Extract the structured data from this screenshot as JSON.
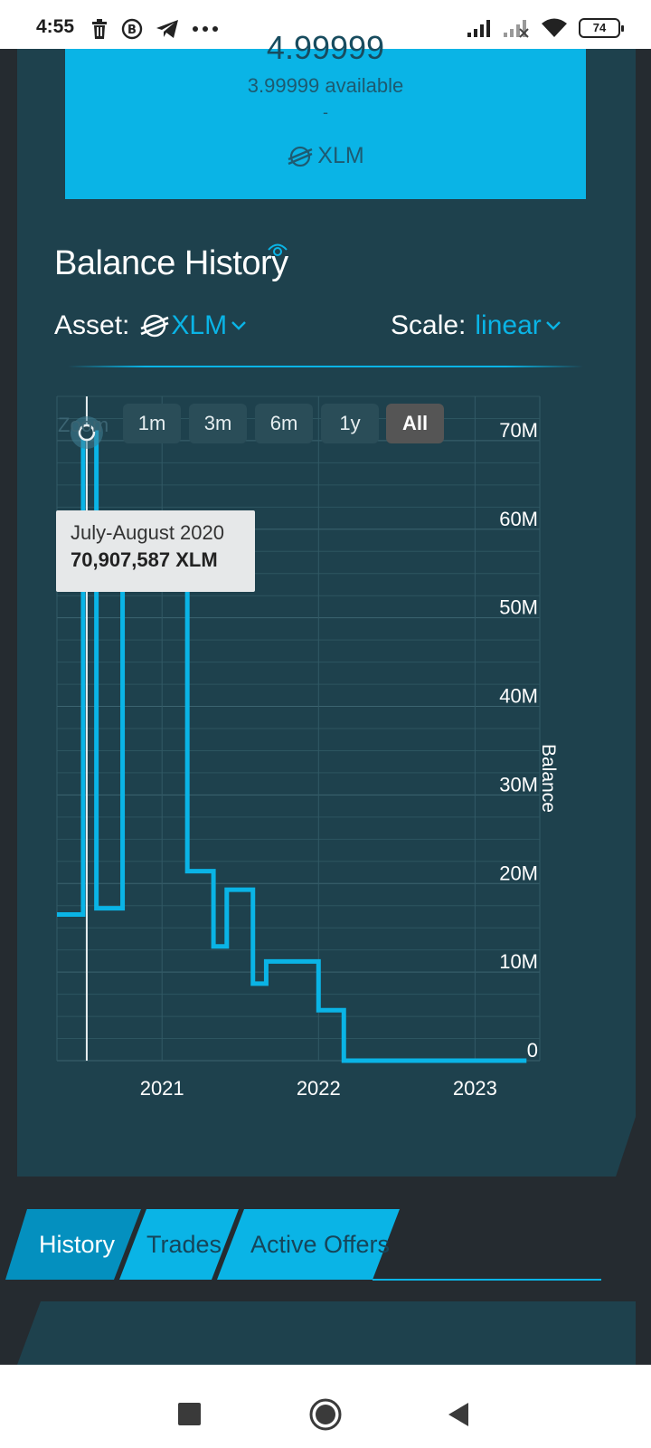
{
  "status_bar": {
    "time": "4:55",
    "battery": "74",
    "icons": [
      "trash-icon",
      "b-badge-icon",
      "telegram-icon",
      "more-dots-icon",
      "signal-icon",
      "signal-x-icon",
      "wifi-icon",
      "battery-icon"
    ]
  },
  "asset_card": {
    "balance": "4.99999",
    "available": "3.99999 available",
    "separator": "-",
    "code": "XLM",
    "icon": "stellar-icon"
  },
  "balance_history": {
    "title": "Balance History",
    "asset_label": "Asset:",
    "asset_value": "XLM",
    "scale_label": "Scale:",
    "scale_value": "linear"
  },
  "chart": {
    "zoom_label": "Zoom",
    "zoom_buttons": [
      {
        "label": "1m",
        "active": false
      },
      {
        "label": "3m",
        "active": false
      },
      {
        "label": "6m",
        "active": false
      },
      {
        "label": "1y",
        "active": false
      },
      {
        "label": "All",
        "active": true
      }
    ],
    "tooltip": {
      "date": "July-August 2020",
      "value": "70,907,587 XLM"
    }
  },
  "chart_data": {
    "type": "line",
    "step": true,
    "x_ticks": [
      "2021",
      "2022",
      "2023"
    ],
    "y_ticks": [
      "0",
      "10M",
      "20M",
      "30M",
      "40M",
      "50M",
      "60M",
      "70M"
    ],
    "ylabel": "Balance",
    "ylim": [
      0,
      75000000
    ],
    "xlim": [
      "2020-05-01",
      "2023-06-01"
    ],
    "series": [
      {
        "points": [
          [
            "2020-05-01",
            16500000
          ],
          [
            "2020-07-01",
            70907587
          ],
          [
            "2020-08-01",
            17200000
          ],
          [
            "2020-10-01",
            54900000
          ],
          [
            "2021-03-01",
            21400000
          ],
          [
            "2021-05-01",
            12900000
          ],
          [
            "2021-06-01",
            19300000
          ],
          [
            "2021-08-01",
            8700000
          ],
          [
            "2021-09-01",
            11200000
          ],
          [
            "2022-01-01",
            5700000
          ],
          [
            "2022-03-01",
            0
          ],
          [
            "2023-05-01",
            0
          ]
        ]
      }
    ],
    "highlight_x": "2020-07-01",
    "grid": true,
    "line_color": "#0ab4e6"
  },
  "tabs": [
    {
      "label": "History",
      "active": true
    },
    {
      "label": "Trades",
      "active": false
    },
    {
      "label": "Active Offers",
      "active": false
    }
  ],
  "nav": {
    "icons": [
      "recent-apps-icon",
      "home-icon",
      "back-icon"
    ]
  }
}
